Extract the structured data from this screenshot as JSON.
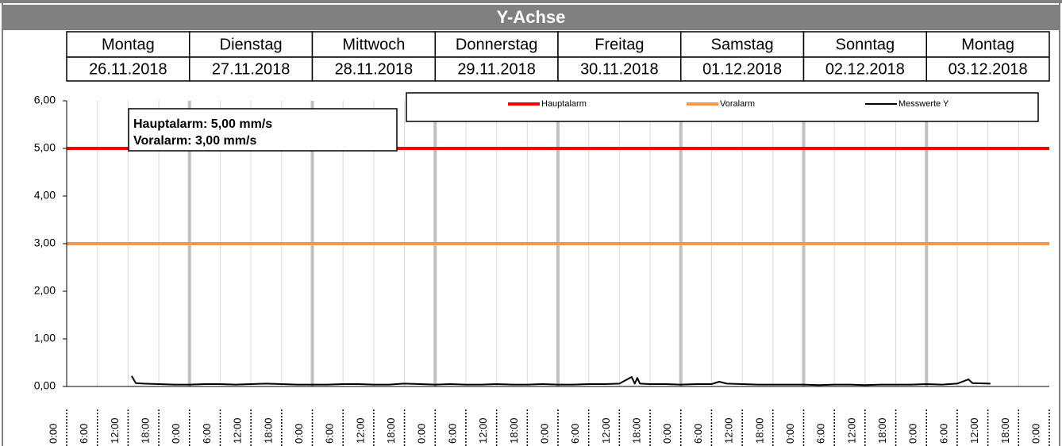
{
  "chart_data": {
    "type": "line",
    "title": "Y-Achse",
    "days": [
      {
        "weekday": "Montag",
        "date": "26.11.2018"
      },
      {
        "weekday": "Dienstag",
        "date": "27.11.2018"
      },
      {
        "weekday": "Mittwoch",
        "date": "28.11.2018"
      },
      {
        "weekday": "Donnerstag",
        "date": "29.11.2018"
      },
      {
        "weekday": "Freitag",
        "date": "30.11.2018"
      },
      {
        "weekday": "Samstag",
        "date": "01.12.2018"
      },
      {
        "weekday": "Sonntag",
        "date": "02.12.2018"
      },
      {
        "weekday": "Montag",
        "date": "03.12.2018"
      }
    ],
    "annotations": [
      "Hauptalarm: 5,00 mm/s",
      "Voralarm: 3,00 mm/s"
    ],
    "xlim": [
      0,
      192
    ],
    "xticks": [
      {
        "value": 0,
        "label": "0:00"
      },
      {
        "value": 6,
        "label": "6:00"
      },
      {
        "value": 12,
        "label": "12:00"
      },
      {
        "value": 18,
        "label": "18:00"
      },
      {
        "value": 24,
        "label": "0:00"
      },
      {
        "value": 30,
        "label": "6:00"
      },
      {
        "value": 36,
        "label": "12:00"
      },
      {
        "value": 42,
        "label": "18:00"
      },
      {
        "value": 48,
        "label": "0:00"
      },
      {
        "value": 54,
        "label": "6:00"
      },
      {
        "value": 60,
        "label": "12:00"
      },
      {
        "value": 66,
        "label": "18:00"
      },
      {
        "value": 72,
        "label": "0:00"
      },
      {
        "value": 78,
        "label": "6:00"
      },
      {
        "value": 84,
        "label": "12:00"
      },
      {
        "value": 90,
        "label": "18:00"
      },
      {
        "value": 96,
        "label": "0:00"
      },
      {
        "value": 102,
        "label": "6:00"
      },
      {
        "value": 108,
        "label": "12:00"
      },
      {
        "value": 114,
        "label": "18:00"
      },
      {
        "value": 120,
        "label": "0:00"
      },
      {
        "value": 126,
        "label": "6:00"
      },
      {
        "value": 132,
        "label": "12:00"
      },
      {
        "value": 138,
        "label": "18:00"
      },
      {
        "value": 144,
        "label": "0:00"
      },
      {
        "value": 150,
        "label": "6:00"
      },
      {
        "value": 156,
        "label": "12:00"
      },
      {
        "value": 162,
        "label": "18:00"
      },
      {
        "value": 168,
        "label": "0:00"
      },
      {
        "value": 174,
        "label": "6:00"
      },
      {
        "value": 180,
        "label": "12:00"
      },
      {
        "value": 186,
        "label": "18:00"
      },
      {
        "value": 192,
        "label": "0:00"
      }
    ],
    "ylim": [
      0,
      6
    ],
    "yticks": [
      {
        "value": 0,
        "label": "0,00"
      },
      {
        "value": 1,
        "label": "1,00"
      },
      {
        "value": 2,
        "label": "2,00"
      },
      {
        "value": 3,
        "label": "3,00"
      },
      {
        "value": 4,
        "label": "4,00"
      },
      {
        "value": 5,
        "label": "5,00"
      },
      {
        "value": 6,
        "label": "6,00"
      }
    ],
    "grid": true,
    "legend": "top-right",
    "series": [
      {
        "name": "Hauptalarm",
        "color": "#ff0000",
        "x": [
          0,
          192
        ],
        "values": [
          5,
          5
        ]
      },
      {
        "name": "Voralarm",
        "color": "#f79646",
        "x": [
          0,
          192
        ],
        "values": [
          3,
          3
        ]
      },
      {
        "name": "Messwerte Y",
        "color": "#000000",
        "x": [
          12.7,
          13.5,
          15,
          18,
          21,
          24,
          27,
          30,
          33,
          36,
          39,
          42,
          45,
          48,
          51,
          54,
          57,
          60,
          63,
          66,
          69,
          72,
          75,
          78,
          81,
          84,
          87,
          90,
          93,
          96,
          99,
          102,
          105,
          108,
          110.4,
          111,
          111.5,
          112,
          114,
          117,
          120,
          123,
          126,
          127.5,
          129,
          132,
          135,
          138,
          141,
          144,
          147,
          150,
          153,
          156,
          159,
          162,
          165,
          168,
          171,
          174,
          176.2,
          177,
          180.5
        ],
        "values": [
          0.22,
          0.07,
          0.06,
          0.05,
          0.04,
          0.04,
          0.05,
          0.05,
          0.04,
          0.05,
          0.06,
          0.05,
          0.04,
          0.04,
          0.04,
          0.05,
          0.05,
          0.04,
          0.04,
          0.06,
          0.05,
          0.04,
          0.05,
          0.04,
          0.04,
          0.05,
          0.04,
          0.04,
          0.05,
          0.04,
          0.04,
          0.05,
          0.05,
          0.06,
          0.2,
          0.06,
          0.18,
          0.06,
          0.05,
          0.05,
          0.04,
          0.05,
          0.05,
          0.1,
          0.06,
          0.05,
          0.04,
          0.04,
          0.04,
          0.04,
          0.03,
          0.04,
          0.04,
          0.03,
          0.04,
          0.04,
          0.04,
          0.05,
          0.04,
          0.06,
          0.15,
          0.07,
          0.06
        ]
      }
    ]
  }
}
